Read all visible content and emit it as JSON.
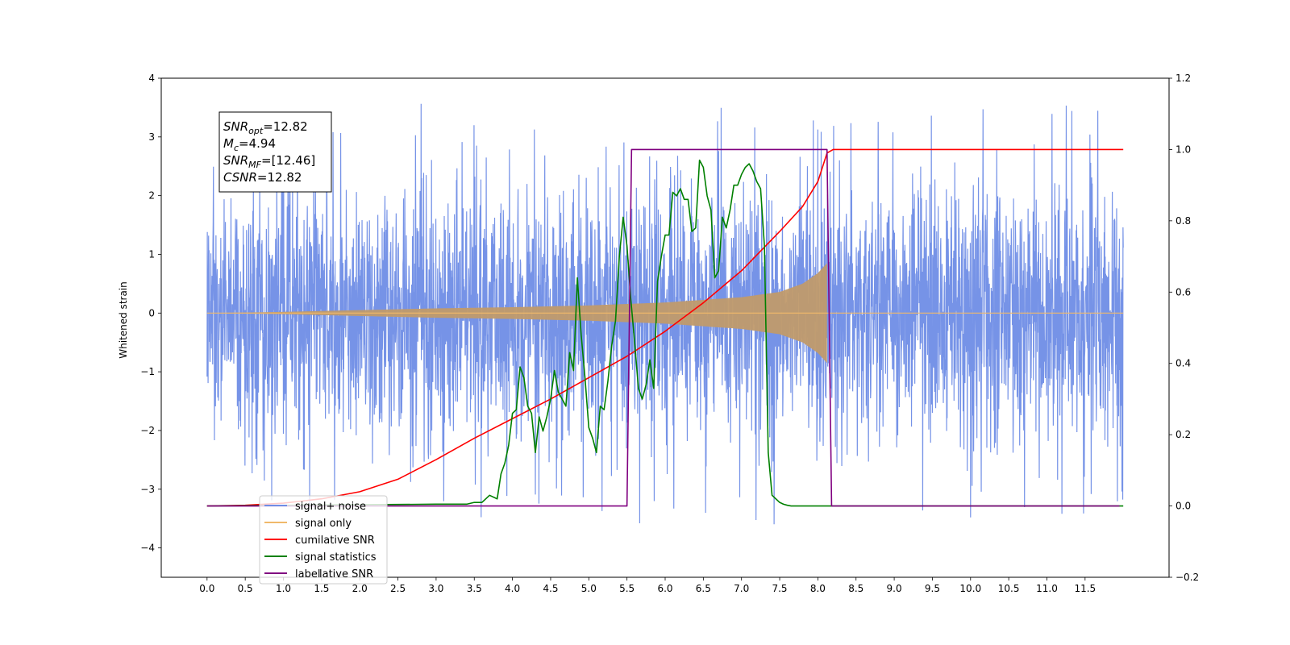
{
  "chart_data": {
    "type": "line",
    "xlabel": "",
    "ylabel": "Whitened strain",
    "ylabel_right": "",
    "xlim": [
      -0.6,
      12.6
    ],
    "ylim_left": [
      -4.5,
      4
    ],
    "ylim_right": [
      -0.2,
      1.2
    ],
    "xticks": [
      0.0,
      0.5,
      1.0,
      1.5,
      2.0,
      2.5,
      3.0,
      3.5,
      4.0,
      4.5,
      5.0,
      5.5,
      6.0,
      6.5,
      7.0,
      7.5,
      8.0,
      8.5,
      9.0,
      9.5,
      10.0,
      10.5,
      11.0,
      11.5
    ],
    "xtick_labels": [
      "0.0",
      "0.5",
      "1.0",
      "1.5",
      "2.0",
      "2.5",
      "3.0",
      "3.5",
      "4.0",
      "4.5",
      "5.0",
      "5.5",
      "6.0",
      "6.5",
      "7.0",
      "7.5",
      "8.0",
      "8.5",
      "9.0",
      "9.5",
      "10.0",
      "10.5",
      "11.0",
      "11.5"
    ],
    "yticks_left": [
      -4,
      -3,
      -2,
      -1,
      0,
      1,
      2,
      3,
      4
    ],
    "ytick_labels_left": [
      "−4",
      "−3",
      "−2",
      "−1",
      "0",
      "1",
      "2",
      "3",
      "4"
    ],
    "yticks_right": [
      -0.2,
      0.0,
      0.2,
      0.4,
      0.6,
      0.8,
      1.0,
      1.2
    ],
    "ytick_labels_right": [
      "−0.2",
      "0.0",
      "0.2",
      "0.4",
      "0.6",
      "0.8",
      "1.0",
      "1.2"
    ],
    "grid": false,
    "legend_placement": "lower-left",
    "infobox": {
      "lines": [
        {
          "base": "SNR",
          "sub": "opt",
          "rest": "=12.82"
        },
        {
          "base": "M",
          "sub": "c",
          "rest": "=4.94"
        },
        {
          "base": "SNR",
          "sub": "MF",
          "rest": "=[12.46]"
        },
        {
          "base": "CSNR",
          "sub": "",
          "rest": "=12.82"
        }
      ]
    },
    "legend": [
      {
        "label": "signal+ noise",
        "color": "#6f8de6"
      },
      {
        "label": "signal only",
        "color": "#f0b96a"
      },
      {
        "label": "cumilative SNR",
        "color": "#ff0000"
      },
      {
        "label": "signal statistics",
        "color": "#008000"
      },
      {
        "label": "label",
        "color": "#800080"
      }
    ],
    "legend_ghost_text": "lative SNR",
    "series": [
      {
        "name": "signal+ noise",
        "axis": "left",
        "color": "#6f8de6",
        "style": "noise",
        "x_range": [
          0.0,
          12.0
        ],
        "envelope_abs": 3.3,
        "spike_max": 3.6,
        "spike_min": -4.1
      },
      {
        "name": "signal only",
        "axis": "left",
        "color": "#f0b96a",
        "style": "chirp",
        "x_range": [
          0.0,
          8.12
        ],
        "amplitude_x": [
          0.0,
          1.0,
          2.0,
          3.0,
          4.0,
          5.0,
          6.0,
          7.0,
          7.5,
          7.8,
          8.0,
          8.12
        ],
        "amplitude_y": [
          0.0,
          0.02,
          0.05,
          0.08,
          0.1,
          0.13,
          0.18,
          0.27,
          0.36,
          0.5,
          0.68,
          0.85
        ]
      },
      {
        "name": "cumilative SNR",
        "axis": "right",
        "color": "#ff0000",
        "x": [
          0.0,
          0.5,
          1.0,
          1.5,
          2.0,
          2.5,
          3.0,
          3.5,
          4.0,
          4.5,
          5.0,
          5.5,
          6.0,
          6.5,
          7.0,
          7.5,
          7.8,
          8.0,
          8.12,
          8.2,
          12.0
        ],
        "values": [
          0.0,
          0.002,
          0.008,
          0.02,
          0.04,
          0.075,
          0.13,
          0.19,
          0.245,
          0.3,
          0.36,
          0.42,
          0.49,
          0.57,
          0.66,
          0.77,
          0.84,
          0.91,
          0.99,
          1.0,
          1.0
        ]
      },
      {
        "name": "signal statistics",
        "axis": "right",
        "color": "#008000",
        "x": [
          0.0,
          3.0,
          3.4,
          3.5,
          3.6,
          3.7,
          3.8,
          3.85,
          3.9,
          3.95,
          4.0,
          4.05,
          4.1,
          4.15,
          4.2,
          4.25,
          4.3,
          4.35,
          4.4,
          4.45,
          4.5,
          4.55,
          4.6,
          4.65,
          4.7,
          4.75,
          4.8,
          4.85,
          4.9,
          4.95,
          5.0,
          5.05,
          5.1,
          5.15,
          5.2,
          5.25,
          5.3,
          5.35,
          5.4,
          5.45,
          5.5,
          5.55,
          5.6,
          5.65,
          5.7,
          5.75,
          5.8,
          5.85,
          5.9,
          5.95,
          6.0,
          6.05,
          6.1,
          6.15,
          6.2,
          6.25,
          6.3,
          6.35,
          6.4,
          6.45,
          6.5,
          6.55,
          6.6,
          6.65,
          6.7,
          6.75,
          6.8,
          6.85,
          6.9,
          6.95,
          7.0,
          7.05,
          7.1,
          7.15,
          7.2,
          7.25,
          7.3,
          7.35,
          7.4,
          7.45,
          7.5,
          7.55,
          7.6,
          7.65,
          7.7,
          7.75,
          7.8,
          7.85,
          7.9,
          7.95,
          8.0,
          8.05,
          8.1,
          8.15,
          8.2,
          8.3,
          8.5,
          9.0,
          12.0
        ],
        "values": [
          0.0,
          0.005,
          0.005,
          0.01,
          0.01,
          0.03,
          0.02,
          0.09,
          0.12,
          0.17,
          0.26,
          0.27,
          0.39,
          0.36,
          0.28,
          0.26,
          0.15,
          0.25,
          0.21,
          0.25,
          0.3,
          0.38,
          0.32,
          0.3,
          0.28,
          0.43,
          0.38,
          0.64,
          0.48,
          0.36,
          0.22,
          0.19,
          0.15,
          0.28,
          0.27,
          0.35,
          0.45,
          0.52,
          0.7,
          0.81,
          0.73,
          0.58,
          0.46,
          0.33,
          0.3,
          0.34,
          0.41,
          0.33,
          0.63,
          0.7,
          0.76,
          0.76,
          0.88,
          0.87,
          0.89,
          0.86,
          0.86,
          0.77,
          0.78,
          0.97,
          0.95,
          0.87,
          0.83,
          0.64,
          0.66,
          0.81,
          0.78,
          0.83,
          0.9,
          0.9,
          0.93,
          0.95,
          0.96,
          0.94,
          0.91,
          0.89,
          0.73,
          0.15,
          0.03,
          0.02,
          0.01,
          0.005,
          0.002,
          0.0,
          0.0,
          0.0,
          0.0,
          0.0,
          0.0,
          0.0,
          0.0,
          0.0,
          0.0,
          0.0,
          0.0,
          0.0,
          0.0,
          0.0,
          0.0
        ]
      },
      {
        "name": "label",
        "axis": "right",
        "color": "#800080",
        "x": [
          0.0,
          5.5,
          5.56,
          8.12,
          8.18,
          11.95
        ],
        "values": [
          0.0,
          0.0,
          1.0,
          1.0,
          0.0,
          0.0
        ]
      }
    ]
  }
}
